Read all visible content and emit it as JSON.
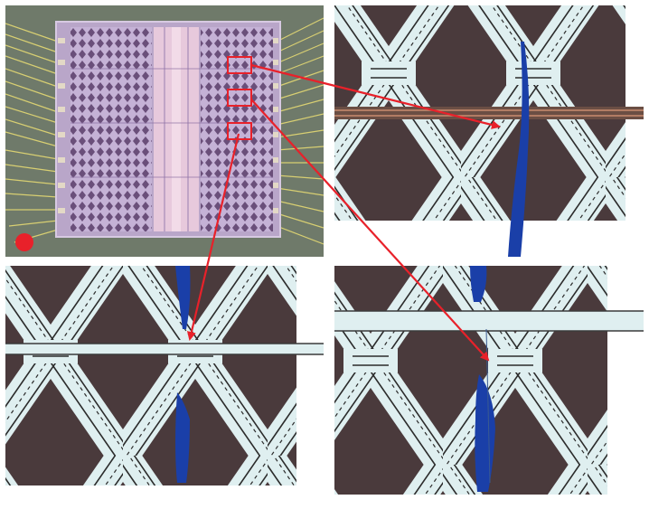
{
  "figure": {
    "panels": [
      {
        "id": "overview",
        "description_name": "chip-overview"
      },
      {
        "id": "zoom-top-right",
        "description_name": "zoom-region-1"
      },
      {
        "id": "zoom-bottom-left",
        "description_name": "zoom-region-3"
      },
      {
        "id": "zoom-bottom-right",
        "description_name": "zoom-region-2"
      }
    ],
    "colors": {
      "background": "#ffffff",
      "annotation": "#e8212a",
      "metal": "#dfeff0",
      "oxide": "#4a3a3c",
      "crack": "#1a3fa8",
      "die": "#b9a6c9",
      "bond_wire": "#d8cf72",
      "substrate": "#6f7a6a"
    }
  }
}
